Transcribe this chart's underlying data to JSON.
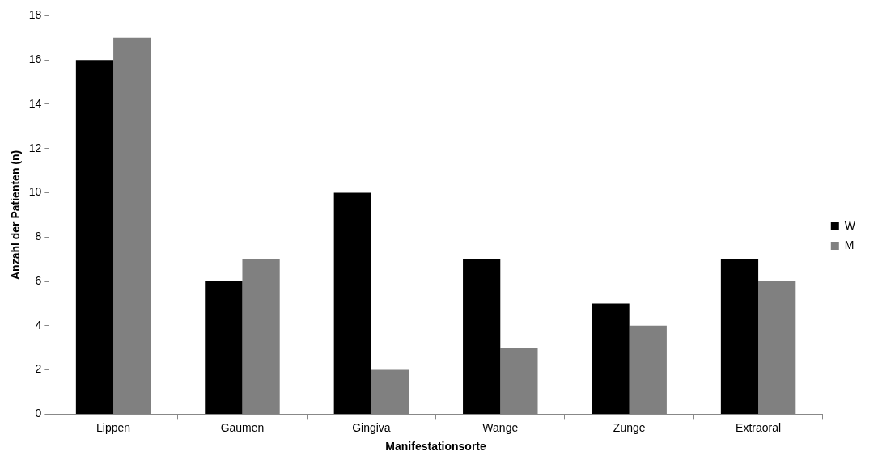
{
  "chart_data": {
    "type": "bar",
    "xlabel": "Manifestationsorte",
    "ylabel": "Anzahl der Patienten (n)",
    "categories": [
      "Lippen",
      "Gaumen",
      "Gingiva",
      "Wange",
      "Zunge",
      "Extraoral"
    ],
    "series": [
      {
        "name": "W",
        "color": "#000000",
        "values": [
          16,
          6,
          10,
          7,
          5,
          7
        ]
      },
      {
        "name": "M",
        "color": "#808080",
        "values": [
          17,
          7,
          2,
          3,
          4,
          6
        ]
      }
    ],
    "ylim": [
      0,
      18
    ],
    "yticks": [
      0,
      2,
      4,
      6,
      8,
      10,
      12,
      14,
      16,
      18
    ],
    "grid": false,
    "legend": "right"
  }
}
